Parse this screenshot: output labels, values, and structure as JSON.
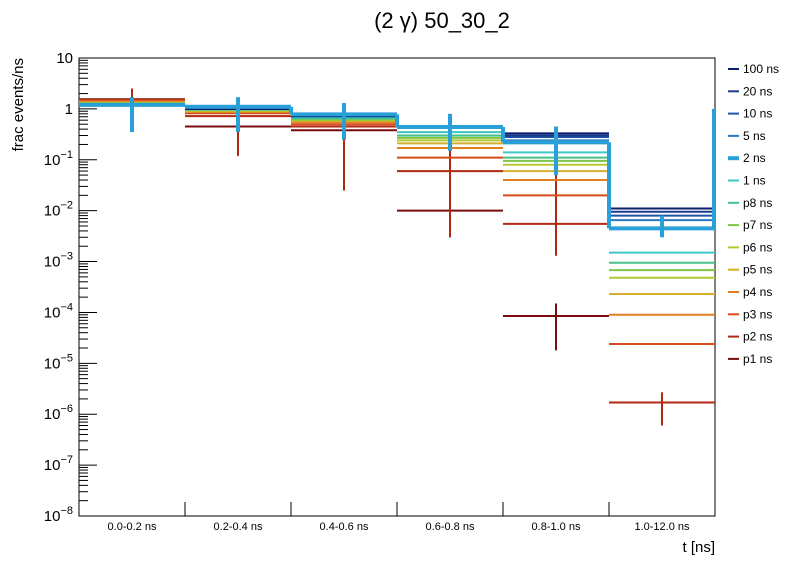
{
  "chart_data": {
    "type": "line",
    "title": "(2 γ) 50_30_2",
    "xlabel": "t [ns]",
    "ylabel": "frac events/ns",
    "log_y": true,
    "ylim": [
      1e-08,
      10
    ],
    "grid": false,
    "legend_position": "right",
    "categories": [
      "0.0-0.2 ns",
      "0.2-0.4 ns",
      "0.4-0.6 ns",
      "0.6-0.8 ns",
      "0.8-1.0 ns",
      "1.0-12.0 ns"
    ],
    "y_ticks": [
      {
        "base": "10",
        "exp": "",
        "v": 10
      },
      {
        "base": "1",
        "exp": "",
        "v": 1
      },
      {
        "base": "10",
        "exp": "−1",
        "v": 0.1
      },
      {
        "base": "10",
        "exp": "−2",
        "v": 0.01
      },
      {
        "base": "10",
        "exp": "−3",
        "v": 0.001
      },
      {
        "base": "10",
        "exp": "−4",
        "v": 0.0001
      },
      {
        "base": "10",
        "exp": "−5",
        "v": 1e-05
      },
      {
        "base": "10",
        "exp": "−6",
        "v": 1e-06
      },
      {
        "base": "10",
        "exp": "−7",
        "v": 1e-07
      },
      {
        "base": "10",
        "exp": "−8",
        "v": 1e-08
      }
    ],
    "series": [
      {
        "name": "100 ns",
        "color": "#0b1f6e",
        "width": 2,
        "values": [
          1.2,
          1.0,
          0.72,
          0.45,
          0.33,
          0.011
        ]
      },
      {
        "name": "20 ns",
        "color": "#1a3a8c",
        "width": 2,
        "values": [
          1.2,
          1.0,
          0.72,
          0.45,
          0.3,
          0.0095
        ]
      },
      {
        "name": "10 ns",
        "color": "#1f55a8",
        "width": 2,
        "values": [
          1.2,
          1.0,
          0.72,
          0.44,
          0.28,
          0.008
        ]
      },
      {
        "name": "5 ns",
        "color": "#2a78c4",
        "width": 2,
        "values": [
          1.2,
          1.0,
          0.72,
          0.42,
          0.24,
          0.0065
        ]
      },
      {
        "name": "2 ns",
        "color": "#2aa0d8",
        "width": 4,
        "values": [
          1.2,
          1.1,
          0.78,
          0.44,
          0.22,
          0.0045
        ],
        "err_lo": [
          0.35,
          0.35,
          0.25,
          0.15,
          0.05,
          0.003
        ],
        "err_hi": [
          1.7,
          1.7,
          1.3,
          0.8,
          0.45,
          0.008
        ]
      },
      {
        "name": "1 ns",
        "color": "#3ec6c6",
        "width": 2,
        "values": [
          1.2,
          0.98,
          0.68,
          0.35,
          0.14,
          0.0015
        ]
      },
      {
        "name": "p8 ns",
        "color": "#44c08a",
        "width": 2,
        "values": [
          1.25,
          0.97,
          0.65,
          0.3,
          0.11,
          0.00095
        ]
      },
      {
        "name": "p7 ns",
        "color": "#7fc54a",
        "width": 2,
        "values": [
          1.28,
          0.95,
          0.62,
          0.27,
          0.095,
          0.00068
        ]
      },
      {
        "name": "p6 ns",
        "color": "#b6c832",
        "width": 2,
        "values": [
          1.3,
          0.93,
          0.6,
          0.24,
          0.08,
          0.00048
        ]
      },
      {
        "name": "p5 ns",
        "color": "#d4b02c",
        "width": 2,
        "values": [
          1.33,
          0.9,
          0.58,
          0.21,
          0.06,
          0.00023
        ]
      },
      {
        "name": "p4 ns",
        "color": "#e0801e",
        "width": 2,
        "values": [
          1.38,
          0.87,
          0.55,
          0.17,
          0.04,
          9e-05
        ]
      },
      {
        "name": "p3 ns",
        "color": "#d84a1a",
        "width": 2,
        "values": [
          1.45,
          0.82,
          0.5,
          0.11,
          0.02,
          2.4e-05
        ]
      },
      {
        "name": "p2 ns",
        "color": "#b02a12",
        "width": 2,
        "values": [
          1.5,
          0.72,
          0.45,
          0.06,
          0.0055,
          1.7e-06
        ],
        "err_lo": [
          0.9,
          0.12,
          0.025,
          0.003,
          0.0013,
          6e-07
        ],
        "err_hi": [
          2.5,
          1.5,
          1.0,
          0.55,
          0.3,
          2.7e-06
        ]
      },
      {
        "name": "p1 ns",
        "color": "#7a0c0c",
        "width": 2,
        "values": [
          1.55,
          0.45,
          0.38,
          0.01,
          8.5e-05,
          null
        ],
        "err_lo": [
          0.9,
          0.12,
          0.025,
          0.003,
          1.8e-05,
          null
        ],
        "err_hi": [
          2.5,
          1.5,
          1.0,
          0.55,
          0.00015,
          null
        ]
      }
    ]
  }
}
